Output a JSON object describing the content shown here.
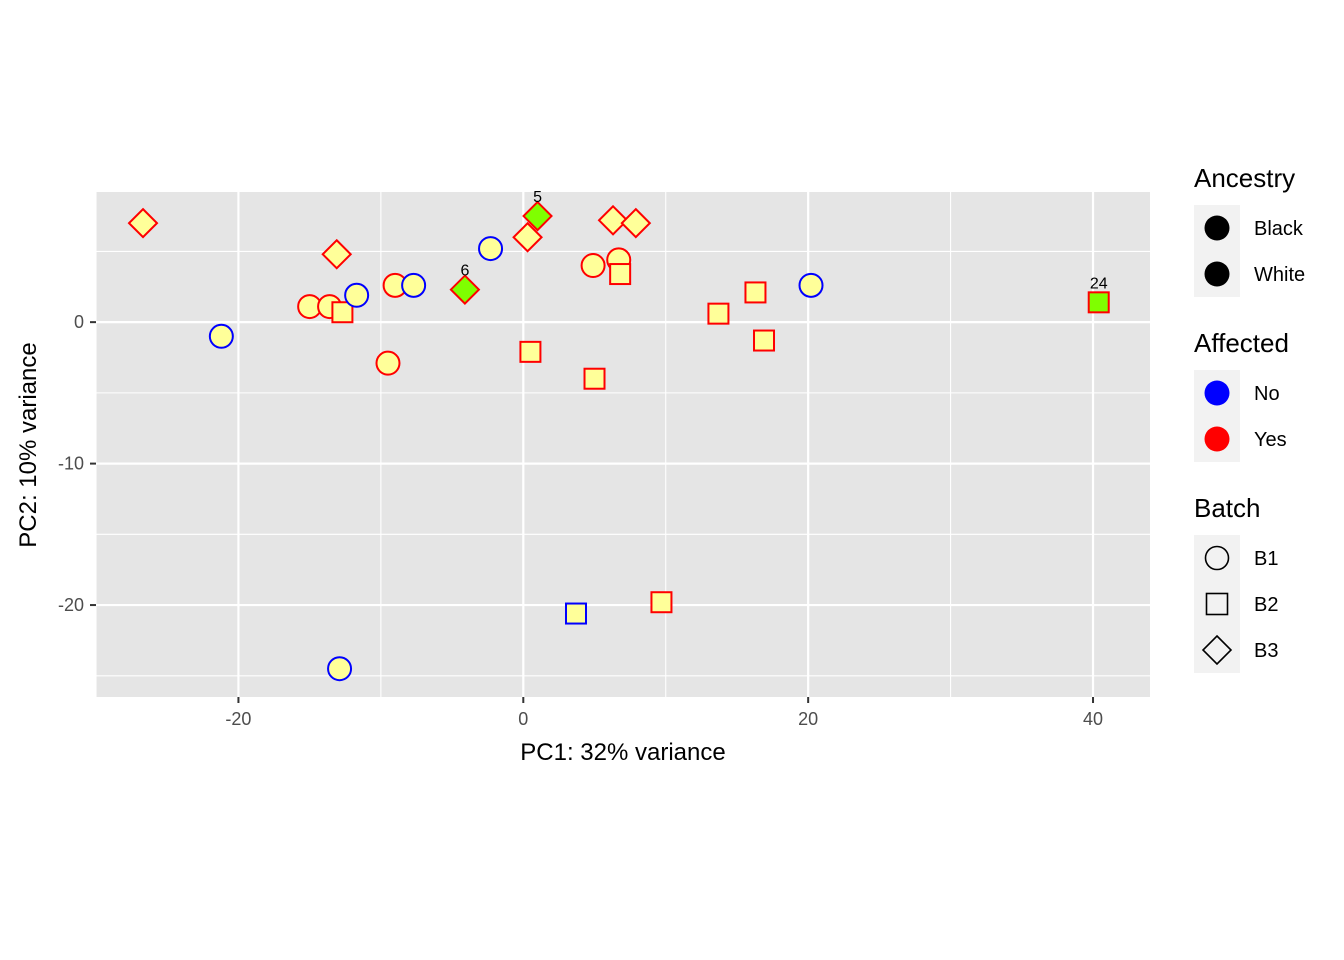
{
  "chart_data": {
    "type": "scatter",
    "title": "",
    "xlabel": "PC1: 32% variance",
    "ylabel": "PC2: 10% variance",
    "xlim": [
      -30,
      44
    ],
    "ylim": [
      -26.5,
      9.2
    ],
    "x_ticks": [
      -20,
      0,
      20,
      40
    ],
    "x_tick_labels": [
      "-20",
      "0",
      "20",
      "40"
    ],
    "y_ticks": [
      -20,
      -10,
      0
    ],
    "y_tick_labels": [
      "-20",
      "-10",
      "0"
    ],
    "grid": true,
    "legend_position": "right",
    "colors": {
      "No": "#0000ff",
      "Yes": "#ff0000",
      "fill_default": "#ffff99",
      "fill_highlight": "#7fff00",
      "panel": "#e5e5e5",
      "grid": "#ffffff"
    },
    "legends": [
      {
        "key": "ancestry",
        "title": "Ancestry",
        "items": [
          {
            "label": "Black",
            "glyph": "filled-circle"
          },
          {
            "label": "White",
            "glyph": "filled-circle"
          }
        ]
      },
      {
        "key": "affected",
        "title": "Affected",
        "items": [
          {
            "label": "No",
            "glyph": "filled-circle",
            "color": "#0000ff"
          },
          {
            "label": "Yes",
            "glyph": "filled-circle",
            "color": "#ff0000"
          }
        ]
      },
      {
        "key": "batch",
        "title": "Batch",
        "items": [
          {
            "label": "B1",
            "glyph": "circle"
          },
          {
            "label": "B2",
            "glyph": "square"
          },
          {
            "label": "B3",
            "glyph": "diamond"
          }
        ]
      }
    ],
    "points": [
      {
        "x": -26.7,
        "y": 7.0,
        "affected": "Yes",
        "batch": "B3"
      },
      {
        "x": -21.2,
        "y": -1.0,
        "affected": "No",
        "batch": "B1"
      },
      {
        "x": -15.0,
        "y": 1.1,
        "affected": "Yes",
        "batch": "B1"
      },
      {
        "x": -13.6,
        "y": 1.1,
        "affected": "Yes",
        "batch": "B1"
      },
      {
        "x": -13.1,
        "y": 4.8,
        "affected": "Yes",
        "batch": "B3"
      },
      {
        "x": -12.7,
        "y": 0.7,
        "affected": "Yes",
        "batch": "B2"
      },
      {
        "x": -11.7,
        "y": 1.9,
        "affected": "No",
        "batch": "B1"
      },
      {
        "x": -12.9,
        "y": -24.5,
        "affected": "No",
        "batch": "B1"
      },
      {
        "x": -9.5,
        "y": -2.9,
        "affected": "Yes",
        "batch": "B1"
      },
      {
        "x": -9.0,
        "y": 2.6,
        "affected": "Yes",
        "batch": "B1"
      },
      {
        "x": -7.7,
        "y": 2.6,
        "affected": "No",
        "batch": "B1"
      },
      {
        "x": -4.1,
        "y": 2.3,
        "affected": "Yes",
        "batch": "B3",
        "highlight": true,
        "label": "6"
      },
      {
        "x": -2.3,
        "y": 5.2,
        "affected": "No",
        "batch": "B1"
      },
      {
        "x": 0.3,
        "y": 6.0,
        "affected": "Yes",
        "batch": "B3"
      },
      {
        "x": 1.0,
        "y": 7.5,
        "affected": "Yes",
        "batch": "B3",
        "highlight": true,
        "label": "5"
      },
      {
        "x": 0.5,
        "y": -2.1,
        "affected": "Yes",
        "batch": "B2"
      },
      {
        "x": 3.7,
        "y": -20.6,
        "affected": "No",
        "batch": "B2"
      },
      {
        "x": 4.9,
        "y": 4.0,
        "affected": "Yes",
        "batch": "B1"
      },
      {
        "x": 5.0,
        "y": -4.0,
        "affected": "Yes",
        "batch": "B2"
      },
      {
        "x": 6.3,
        "y": 7.2,
        "affected": "Yes",
        "batch": "B3"
      },
      {
        "x": 6.7,
        "y": 4.4,
        "affected": "Yes",
        "batch": "B1"
      },
      {
        "x": 6.8,
        "y": 3.4,
        "affected": "Yes",
        "batch": "B2"
      },
      {
        "x": 7.9,
        "y": 7.0,
        "affected": "Yes",
        "batch": "B3"
      },
      {
        "x": 9.7,
        "y": -19.8,
        "affected": "Yes",
        "batch": "B2"
      },
      {
        "x": 13.7,
        "y": 0.6,
        "affected": "Yes",
        "batch": "B2"
      },
      {
        "x": 16.3,
        "y": 2.1,
        "affected": "Yes",
        "batch": "B2"
      },
      {
        "x": 16.9,
        "y": -1.3,
        "affected": "Yes",
        "batch": "B2"
      },
      {
        "x": 20.2,
        "y": 2.6,
        "affected": "No",
        "batch": "B1"
      },
      {
        "x": 40.4,
        "y": 1.4,
        "affected": "Yes",
        "batch": "B2",
        "highlight": true,
        "label": "24"
      }
    ]
  }
}
